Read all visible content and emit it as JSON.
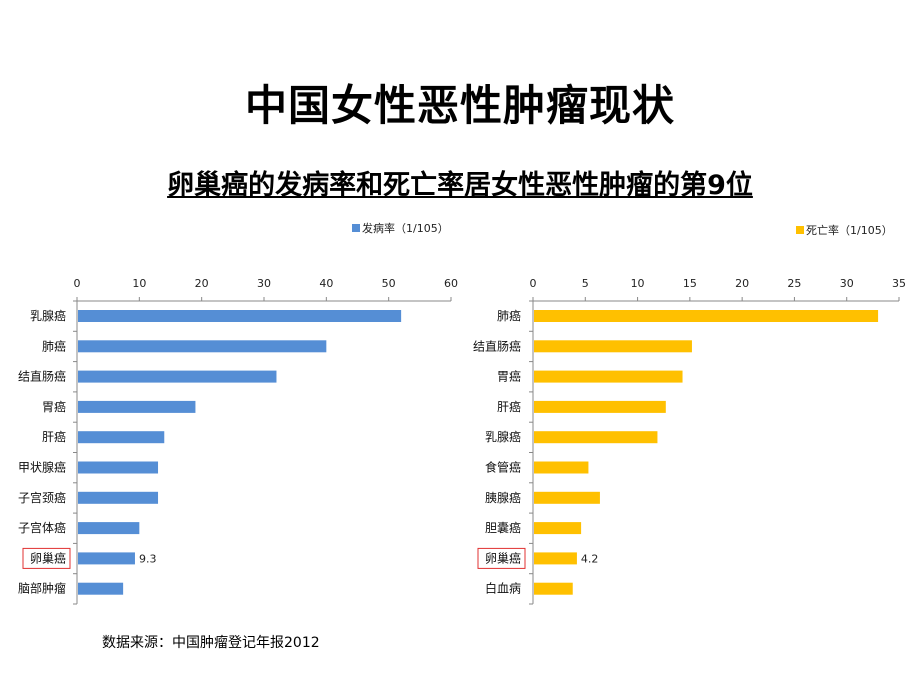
{
  "slide": {
    "title": "中国女性恶性肿瘤现状",
    "subtitle": "卵巢癌的发病率和死亡率居女性恶性肿瘤的第9位",
    "source": "数据来源：中国肿瘤登记年报2012"
  },
  "chart_data": [
    {
      "type": "bar",
      "orientation": "horizontal",
      "legend": "发病率（1/105）",
      "legend_position": "top-right",
      "color": "#558ED5",
      "categories": [
        "乳腺癌",
        "肺癌",
        "结直肠癌",
        "胃癌",
        "肝癌",
        "甲状腺癌",
        "子宫颈癌",
        "子宫体癌",
        "卵巢癌",
        "脑部肿瘤"
      ],
      "values": [
        52,
        40,
        32,
        19,
        14,
        13,
        13,
        10,
        9.3,
        7.4
      ],
      "xlim": [
        0,
        60
      ],
      "ticks": [
        "0",
        "10",
        "20",
        "30",
        "40",
        "50",
        "60"
      ],
      "data_labels": {
        "卵巢癌": "9.3"
      },
      "highlight": "卵巢癌",
      "grid": false
    },
    {
      "type": "bar",
      "orientation": "horizontal",
      "legend": "死亡率（1/105）",
      "legend_position": "top-right",
      "color": "#FFC000",
      "categories": [
        "肺癌",
        "结直肠癌",
        "胃癌",
        "肝癌",
        "乳腺癌",
        "食管癌",
        "胰腺癌",
        "胆囊癌",
        "卵巢癌",
        "白血病"
      ],
      "values": [
        33,
        15.2,
        14.3,
        12.7,
        11.9,
        5.3,
        6.4,
        4.6,
        4.2,
        3.8
      ],
      "xlim": [
        0,
        35
      ],
      "ticks": [
        "0",
        "5",
        "10",
        "15",
        "20",
        "25",
        "30",
        "35"
      ],
      "data_labels": {
        "卵巢癌": "4.2"
      },
      "highlight": "卵巢癌",
      "grid": false
    }
  ]
}
